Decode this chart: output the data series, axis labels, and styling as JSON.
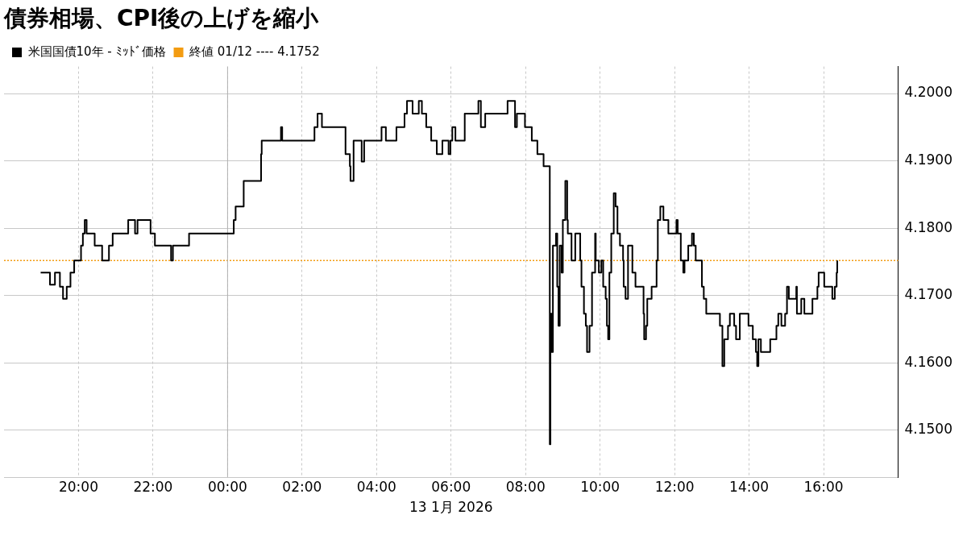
{
  "chart_data": {
    "type": "step",
    "title": "債券相場、CPI後の上げを縮小",
    "xlabel": "13 1月 2026",
    "xlim": [
      "2026-01-12T18:00",
      "2026-01-13T18:00"
    ],
    "xticks": [
      {
        "value": "2026-01-12T20:00",
        "label": "20:00"
      },
      {
        "value": "2026-01-12T22:00",
        "label": "22:00"
      },
      {
        "value": "2026-01-13T00:00",
        "label": "00:00"
      },
      {
        "value": "2026-01-13T02:00",
        "label": "02:00"
      },
      {
        "value": "2026-01-13T04:00",
        "label": "04:00"
      },
      {
        "value": "2026-01-13T06:00",
        "label": "06:00"
      },
      {
        "value": "2026-01-13T08:00",
        "label": "08:00"
      },
      {
        "value": "2026-01-13T10:00",
        "label": "10:00"
      },
      {
        "value": "2026-01-13T12:00",
        "label": "12:00"
      },
      {
        "value": "2026-01-13T14:00",
        "label": "14:00"
      },
      {
        "value": "2026-01-13T16:00",
        "label": "16:00"
      }
    ],
    "ylim": [
      4.143,
      4.204
    ],
    "yticks": [
      {
        "value": 4.15,
        "label": "4.1500"
      },
      {
        "value": 4.16,
        "label": "4.1600"
      },
      {
        "value": 4.17,
        "label": "4.1700"
      },
      {
        "value": 4.18,
        "label": "4.1800"
      },
      {
        "value": 4.19,
        "label": "4.1900"
      },
      {
        "value": 4.2,
        "label": "4.2000"
      }
    ],
    "grid": true,
    "legend": "top left",
    "marker": "none",
    "line_style": "solid",
    "ref_lines": [
      {
        "axis": "y",
        "value": 4.1752,
        "label": "終値 01/12 ---- 4.1752",
        "color": "#f39c12",
        "line_style": "dotted"
      },
      {
        "axis": "x",
        "value": "2026-01-13T00:00",
        "color": "#b0b0b0",
        "line_style": "solid"
      }
    ],
    "series": [
      {
        "name": "米国国債10年 - ﾐｯﾄﾞ価格",
        "color": "#000000",
        "x": [
          "2026-01-12T18:59",
          "2026-01-12T19:14",
          "2026-01-12T19:22",
          "2026-01-12T19:30",
          "2026-01-12T19:35",
          "2026-01-12T19:41",
          "2026-01-12T19:47",
          "2026-01-12T19:53",
          "2026-01-12T20:04",
          "2026-01-12T20:07",
          "2026-01-12T20:10",
          "2026-01-12T20:13",
          "2026-01-12T20:26",
          "2026-01-12T20:38",
          "2026-01-12T20:49",
          "2026-01-12T20:55",
          "2026-01-12T21:18",
          "2026-01-12T21:20",
          "2026-01-12T21:31",
          "2026-01-12T21:35",
          "2026-01-12T21:44",
          "2026-01-12T21:56",
          "2026-01-12T22:03",
          "2026-01-12T22:07",
          "2026-01-12T22:29",
          "2026-01-12T22:32",
          "2026-01-12T22:37",
          "2026-01-12T22:58",
          "2026-01-12T22:59",
          "2026-01-12T23:21",
          "2026-01-12T23:23",
          "2026-01-13T00:10",
          "2026-01-13T00:13",
          "2026-01-13T00:26",
          "2026-01-13T00:28",
          "2026-01-13T00:54",
          "2026-01-13T00:55",
          "2026-01-13T01:05",
          "2026-01-13T01:26",
          "2026-01-13T01:28",
          "2026-01-13T02:19",
          "2026-01-13T02:20",
          "2026-01-13T02:25",
          "2026-01-13T02:32",
          "2026-01-13T03:08",
          "2026-01-13T03:10",
          "2026-01-13T03:17",
          "2026-01-13T03:18",
          "2026-01-13T03:23",
          "2026-01-13T03:31",
          "2026-01-13T03:36",
          "2026-01-13T03:40",
          "2026-01-13T03:49",
          "2026-01-13T04:06",
          "2026-01-13T04:08",
          "2026-01-13T04:15",
          "2026-01-13T04:29",
          "2026-01-13T04:32",
          "2026-01-13T04:42",
          "2026-01-13T04:45",
          "2026-01-13T04:49",
          "2026-01-13T04:58",
          "2026-01-13T05:08",
          "2026-01-13T05:13",
          "2026-01-13T05:20",
          "2026-01-13T05:28",
          "2026-01-13T05:37",
          "2026-01-13T05:43",
          "2026-01-13T05:46",
          "2026-01-13T05:56",
          "2026-01-13T05:59",
          "2026-01-13T06:02",
          "2026-01-13T06:07",
          "2026-01-13T06:18",
          "2026-01-13T06:22",
          "2026-01-13T06:44",
          "2026-01-13T06:48",
          "2026-01-13T06:55",
          "2026-01-13T07:29",
          "2026-01-13T07:31",
          "2026-01-13T07:40",
          "2026-01-13T07:43",
          "2026-01-13T07:46",
          "2026-01-13T07:56",
          "2026-01-13T07:59",
          "2026-01-13T08:08",
          "2026-01-13T08:10",
          "2026-01-13T08:16",
          "2026-01-13T08:19",
          "2026-01-13T08:28",
          "2026-01-13T08:29",
          "2026-01-13T08:38",
          "2026-01-13T08:39",
          "2026-01-13T08:40",
          "2026-01-13T08:42",
          "2026-01-13T08:44",
          "2026-01-13T08:49",
          "2026-01-13T08:51",
          "2026-01-13T08:53",
          "2026-01-13T08:55",
          "2026-01-13T08:58",
          "2026-01-13T09:00",
          "2026-01-13T09:04",
          "2026-01-13T09:07",
          "2026-01-13T09:08",
          "2026-01-13T09:13",
          "2026-01-13T09:14",
          "2026-01-13T09:20",
          "2026-01-13T09:23",
          "2026-01-13T09:28",
          "2026-01-13T09:30",
          "2026-01-13T09:34",
          "2026-01-13T09:37",
          "2026-01-13T09:39",
          "2026-01-13T09:43",
          "2026-01-13T09:47",
          "2026-01-13T09:52",
          "2026-01-13T09:53",
          "2026-01-13T09:58",
          "2026-01-13T10:02",
          "2026-01-13T10:05",
          "2026-01-13T10:09",
          "2026-01-13T10:11",
          "2026-01-13T10:13",
          "2026-01-13T10:15",
          "2026-01-13T10:18",
          "2026-01-13T10:22",
          "2026-01-13T10:25",
          "2026-01-13T10:28",
          "2026-01-13T10:32",
          "2026-01-13T10:37",
          "2026-01-13T10:38",
          "2026-01-13T10:41",
          "2026-01-13T10:45",
          "2026-01-13T10:52",
          "2026-01-13T10:57",
          "2026-01-13T11:05",
          "2026-01-13T11:10",
          "2026-01-13T11:11",
          "2026-01-13T11:14",
          "2026-01-13T11:16",
          "2026-01-13T11:20",
          "2026-01-13T11:23",
          "2026-01-13T11:29",
          "2026-01-13T11:31",
          "2026-01-13T11:33",
          "2026-01-13T11:37",
          "2026-01-13T11:42",
          "2026-01-13T11:49",
          "2026-01-13T11:50",
          "2026-01-13T11:59",
          "2026-01-13T12:03",
          "2026-01-13T12:05",
          "2026-01-13T12:10",
          "2026-01-13T12:14",
          "2026-01-13T12:16",
          "2026-01-13T12:22",
          "2026-01-13T12:28",
          "2026-01-13T12:31",
          "2026-01-13T12:34",
          "2026-01-13T12:42",
          "2026-01-13T12:44",
          "2026-01-13T12:47",
          "2026-01-13T12:51",
          "2026-01-13T13:08",
          "2026-01-13T13:13",
          "2026-01-13T13:17",
          "2026-01-13T13:20",
          "2026-01-13T13:26",
          "2026-01-13T13:29",
          "2026-01-13T13:36",
          "2026-01-13T13:39",
          "2026-01-13T13:45",
          "2026-01-13T13:58",
          "2026-01-13T13:59",
          "2026-01-13T14:06",
          "2026-01-13T14:11",
          "2026-01-13T14:13",
          "2026-01-13T14:15",
          "2026-01-13T14:19",
          "2026-01-13T14:32",
          "2026-01-13T14:34",
          "2026-01-13T14:41",
          "2026-01-13T14:44",
          "2026-01-13T14:47",
          "2026-01-13T14:52",
          "2026-01-13T14:58",
          "2026-01-13T15:01",
          "2026-01-13T15:04",
          "2026-01-13T15:13",
          "2026-01-13T15:16",
          "2026-01-13T15:17",
          "2026-01-13T15:24",
          "2026-01-13T15:29",
          "2026-01-13T15:39",
          "2026-01-13T15:42",
          "2026-01-13T15:49",
          "2026-01-13T15:50",
          "2026-01-13T15:52",
          "2026-01-13T16:01",
          "2026-01-13T16:11",
          "2026-01-13T16:14",
          "2026-01-13T16:18",
          "2026-01-13T16:21",
          "2026-01-13T16:22"
        ],
        "values": [
          4.1734,
          4.1716,
          4.1734,
          4.1713,
          4.1695,
          4.1713,
          4.1734,
          4.1752,
          4.1774,
          4.1792,
          4.1812,
          4.1792,
          4.1774,
          4.1752,
          4.1774,
          4.1792,
          4.1792,
          4.1812,
          4.1792,
          4.1812,
          4.1812,
          4.1792,
          4.1774,
          4.1774,
          4.1752,
          4.1774,
          4.1774,
          4.1792,
          4.1792,
          4.1792,
          4.1792,
          4.1812,
          4.1832,
          4.187,
          4.187,
          4.191,
          4.193,
          4.193,
          4.195,
          4.193,
          4.193,
          4.195,
          4.197,
          4.195,
          4.195,
          4.191,
          4.1892,
          4.187,
          4.193,
          4.193,
          4.1899,
          4.193,
          4.193,
          4.193,
          4.195,
          4.193,
          4.193,
          4.195,
          4.195,
          4.197,
          4.1989,
          4.197,
          4.1989,
          4.197,
          4.195,
          4.193,
          4.191,
          4.191,
          4.193,
          4.191,
          4.193,
          4.195,
          4.193,
          4.193,
          4.197,
          4.1989,
          4.195,
          4.197,
          4.197,
          4.1989,
          4.1989,
          4.195,
          4.197,
          4.197,
          4.195,
          4.195,
          4.193,
          4.193,
          4.191,
          4.191,
          4.1892,
          4.1892,
          4.1479,
          4.1673,
          4.1616,
          4.1774,
          4.1792,
          4.1713,
          4.1655,
          4.1774,
          4.1734,
          4.1812,
          4.187,
          4.1812,
          4.1792,
          4.1792,
          4.1752,
          4.1792,
          4.1792,
          4.1752,
          4.1713,
          4.1673,
          4.1655,
          4.1616,
          4.1655,
          4.1734,
          4.1792,
          4.1752,
          4.1734,
          4.1752,
          4.1713,
          4.1695,
          4.1655,
          4.1635,
          4.1734,
          4.1792,
          4.1852,
          4.1832,
          4.1792,
          4.1774,
          4.1752,
          4.1713,
          4.1695,
          4.1774,
          4.1734,
          4.1713,
          4.1713,
          4.1673,
          4.1635,
          4.1655,
          4.1695,
          4.1695,
          4.1713,
          4.1713,
          4.1752,
          4.1812,
          4.1832,
          4.1812,
          4.1812,
          4.1792,
          4.1792,
          4.1812,
          4.1792,
          4.1752,
          4.1734,
          4.1752,
          4.1774,
          4.1792,
          4.1774,
          4.1752,
          4.1752,
          4.1713,
          4.1695,
          4.1673,
          4.1673,
          4.1655,
          4.1595,
          4.1635,
          4.1655,
          4.1673,
          4.1655,
          4.1635,
          4.1673,
          4.1673,
          4.1655,
          4.1635,
          4.1616,
          4.1595,
          4.1635,
          4.1616,
          4.1616,
          4.1635,
          4.1635,
          4.1655,
          4.1673,
          4.1655,
          4.1673,
          4.1713,
          4.1695,
          4.1695,
          4.1713,
          4.1673,
          4.1695,
          4.1673,
          4.1673,
          4.1695,
          4.1695,
          4.1713,
          4.1734,
          4.1713,
          4.1713,
          4.1695,
          4.1713,
          4.1734,
          4.1752
        ]
      }
    ]
  }
}
